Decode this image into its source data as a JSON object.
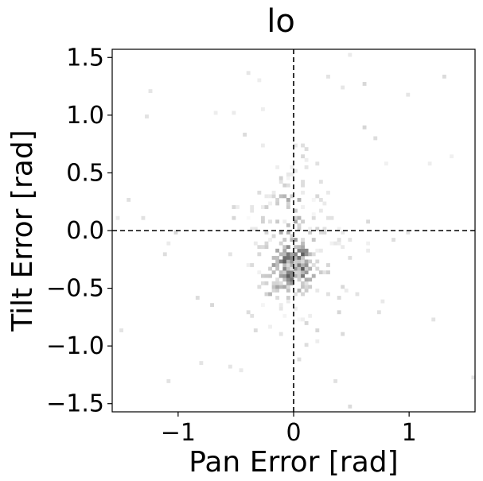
{
  "chart_data": {
    "type": "heatmap",
    "title": "lo",
    "xlabel": "Pan Error [rad]",
    "ylabel": "Tilt Error [rad]",
    "xlim": [
      -1.5708,
      1.5708
    ],
    "ylim": [
      -1.5708,
      1.5708
    ],
    "x_ticks": [
      -1,
      0,
      1
    ],
    "x_tick_labels": [
      "−1",
      "0",
      "1"
    ],
    "y_ticks": [
      1.5,
      1.0,
      0.5,
      0.0,
      -0.5,
      -1.0,
      -1.5
    ],
    "y_tick_labels": [
      "1.5",
      "1.0",
      "0.5",
      "0.0",
      "−0.5",
      "−1.0",
      "−1.5"
    ],
    "reference_lines": {
      "x": 0,
      "y": 0,
      "style": "dashed"
    },
    "colormap": "Greys",
    "grid": false,
    "density_clusters": [
      {
        "x": 0.0,
        "y": -0.28,
        "sx": 0.11,
        "sy": 0.12,
        "weight": 0.55
      },
      {
        "x": -0.12,
        "y": -0.45,
        "sx": 0.12,
        "sy": 0.1,
        "weight": 0.2
      },
      {
        "x": -0.05,
        "y": 0.2,
        "sx": 0.1,
        "sy": 0.18,
        "weight": 0.15
      },
      {
        "x": 0.0,
        "y": -0.1,
        "sx": 0.28,
        "sy": 0.45,
        "weight": 0.1
      }
    ]
  }
}
